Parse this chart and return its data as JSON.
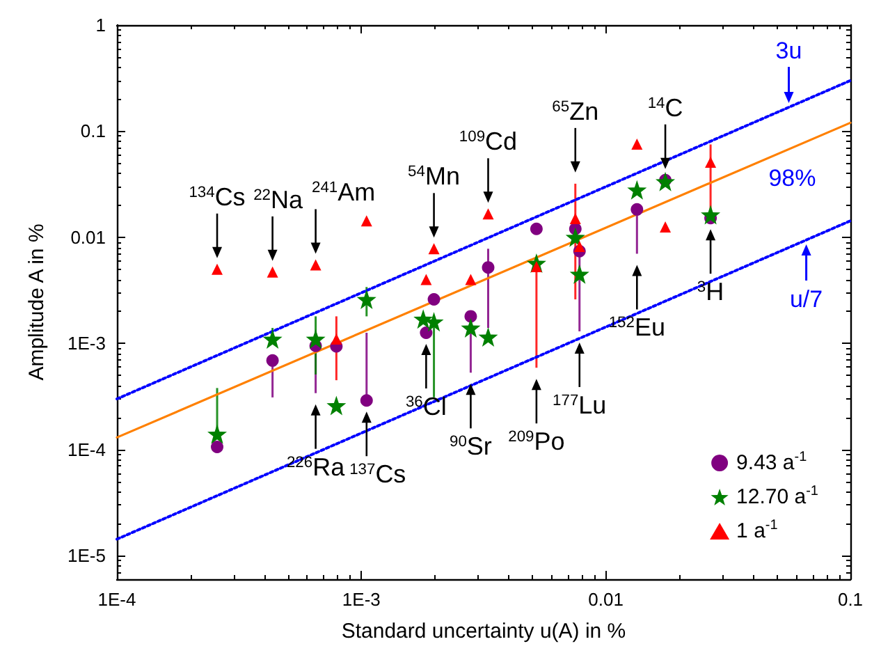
{
  "chart_data": {
    "type": "scatter",
    "xlabel": "Standard uncertainty u(A) in %",
    "ylabel": "Amplitude A in %",
    "log": "xy",
    "grid": false,
    "legend": "bottom right",
    "xlim": [
      0.0001,
      0.1
    ],
    "xticks": [
      {
        "value": 0.0001,
        "label": "1E-4"
      },
      {
        "value": 0.001,
        "label": "1E-3"
      },
      0.01,
      0.1
    ],
    "ylim": [
      6e-06,
      1
    ],
    "yticks": [
      {
        "value": 1e-05,
        "label": "1E-5"
      },
      {
        "value": 0.0001,
        "label": "1E-4"
      },
      {
        "value": 0.001,
        "label": "1E-3"
      },
      0.01,
      0.1,
      1
    ],
    "series": [
      {
        "name": "9.43 a$^{-1}$",
        "color": "#800080",
        "marker": "circle",
        "x": [
          0.000257,
          0.000433,
          0.00065,
          0.00079,
          0.00105,
          0.00184,
          0.00198,
          0.0028,
          0.0033,
          0.0052,
          0.0075,
          0.0078,
          0.0134,
          0.0175,
          0.0268
        ],
        "values": [
          0.000106,
          0.00069,
          0.00095,
          0.00094,
          0.00029,
          0.00126,
          0.0026,
          0.0018,
          0.0052,
          0.012,
          0.012,
          0.0074,
          0.0183,
          0.0346,
          0.0152
        ],
        "errors": [
          null,
          [
            0.00031,
            0.00069
          ],
          [
            0.00034,
            0.00095
          ],
          null,
          [
            0.00029,
            0.00126
          ],
          null,
          null,
          [
            0.00053,
            0.0018
          ],
          [
            0.0014,
            0.0078
          ],
          null,
          null,
          [
            0.0013,
            0.0074
          ],
          [
            0.007,
            0.0183
          ],
          null,
          null
        ]
      },
      {
        "name": "12.70 a$^{-1}$",
        "color": "#008000",
        "marker": "star",
        "x": [
          0.000257,
          0.000433,
          0.00065,
          0.00079,
          0.00105,
          0.00179,
          0.00198,
          0.0028,
          0.0033,
          0.0052,
          0.0075,
          0.0078,
          0.0134,
          0.0175,
          0.0268
        ],
        "values": [
          0.00014,
          0.0011,
          0.0011,
          0.00026,
          0.0026,
          0.0017,
          0.0016,
          0.0014,
          0.00115,
          0.0057,
          0.01,
          0.0045,
          0.028,
          0.0335,
          0.0163
        ],
        "errors": [
          [
            0.00014,
            0.00038
          ],
          [
            0.0011,
            0.0014
          ],
          [
            0.00051,
            0.0018
          ],
          null,
          [
            0.0018,
            0.0034
          ],
          null,
          [
            0.00031,
            0.0016
          ],
          null,
          null,
          null,
          null,
          null,
          null,
          null,
          null
        ]
      },
      {
        "name": "1 a$^{-1}$",
        "color": "#ff0000",
        "marker": "triangle",
        "x": [
          0.000257,
          0.000433,
          0.00065,
          0.00079,
          0.00105,
          0.00184,
          0.00198,
          0.0028,
          0.0033,
          0.0052,
          0.0075,
          0.0078,
          0.0134,
          0.0175,
          0.0268
        ],
        "values": [
          0.005,
          0.0047,
          0.0055,
          0.0011,
          0.0143,
          0.004,
          0.0078,
          0.004,
          0.0166,
          0.0053,
          0.015,
          0.0082,
          0.0755,
          0.0125,
          0.051
        ],
        "errors": [
          null,
          null,
          null,
          [
            0.00045,
            0.0018
          ],
          null,
          null,
          null,
          null,
          null,
          [
            0.00059,
            0.0053
          ],
          [
            0.0026,
            0.032
          ],
          null,
          null,
          null,
          [
            0.0163,
            0.075
          ]
        ]
      },
      {
        "type": "line",
        "color": "#ff8000",
        "line_style": "solid",
        "marker": "none",
        "x": [
          0.0001,
          0.1
        ],
        "values": [
          0.00013,
          0.12
        ]
      },
      {
        "type": "line",
        "color": "#0000ff",
        "line_style": "dotted",
        "marker": "none",
        "x": [
          0.0001,
          0.1
        ],
        "values": [
          0.0003,
          0.3
        ]
      },
      {
        "type": "line",
        "color": "#0000ff",
        "line_style": "dotted",
        "marker": "none",
        "x": [
          0.0001,
          0.1
        ],
        "values": [
          1.43e-05,
          0.0143
        ]
      }
    ],
    "annotations": [
      {
        "text": "$^{134}$Cs",
        "x": 0.000257,
        "y": 0.005
      },
      {
        "text": "$^{22}$Na",
        "x": 0.000433,
        "y": 0.0047
      },
      {
        "text": "$^{241}$Am",
        "x": 0.00065,
        "y": 0.0055
      },
      {
        "text": "$^{54}$Mn",
        "x": 0.00198,
        "y": 0.0078
      },
      {
        "text": "$^{109}$Cd",
        "x": 0.0033,
        "y": 0.0166
      },
      {
        "text": "$^{65}$Zn",
        "x": 0.0075,
        "y": 0.032
      },
      {
        "text": "$^{14}$C",
        "x": 0.0175,
        "y": 0.0346
      },
      {
        "text": "$^{226}$Ra",
        "x": 0.00065,
        "y": 0.00034
      },
      {
        "text": "$^{137}$Cs",
        "x": 0.00105,
        "y": 0.00029
      },
      {
        "text": "$^{36}$Cl",
        "x": 0.00184,
        "y": 0.00126
      },
      {
        "text": "$^{90}$Sr",
        "x": 0.0028,
        "y": 0.00053
      },
      {
        "text": "$^{209}$Po",
        "x": 0.0052,
        "y": 0.00059
      },
      {
        "text": "$^{177}$Lu",
        "x": 0.0078,
        "y": 0.0013
      },
      {
        "text": "$^{152}$Eu",
        "x": 0.0134,
        "y": 0.007
      },
      {
        "text": "$^{3}$H",
        "x": 0.0268,
        "y": 0.0152
      },
      {
        "text": "3u",
        "x": 0.056,
        "y": 0.168
      },
      {
        "text": "u/7",
        "x": 0.066,
        "y": 0.0094
      },
      "98%"
    ]
  }
}
